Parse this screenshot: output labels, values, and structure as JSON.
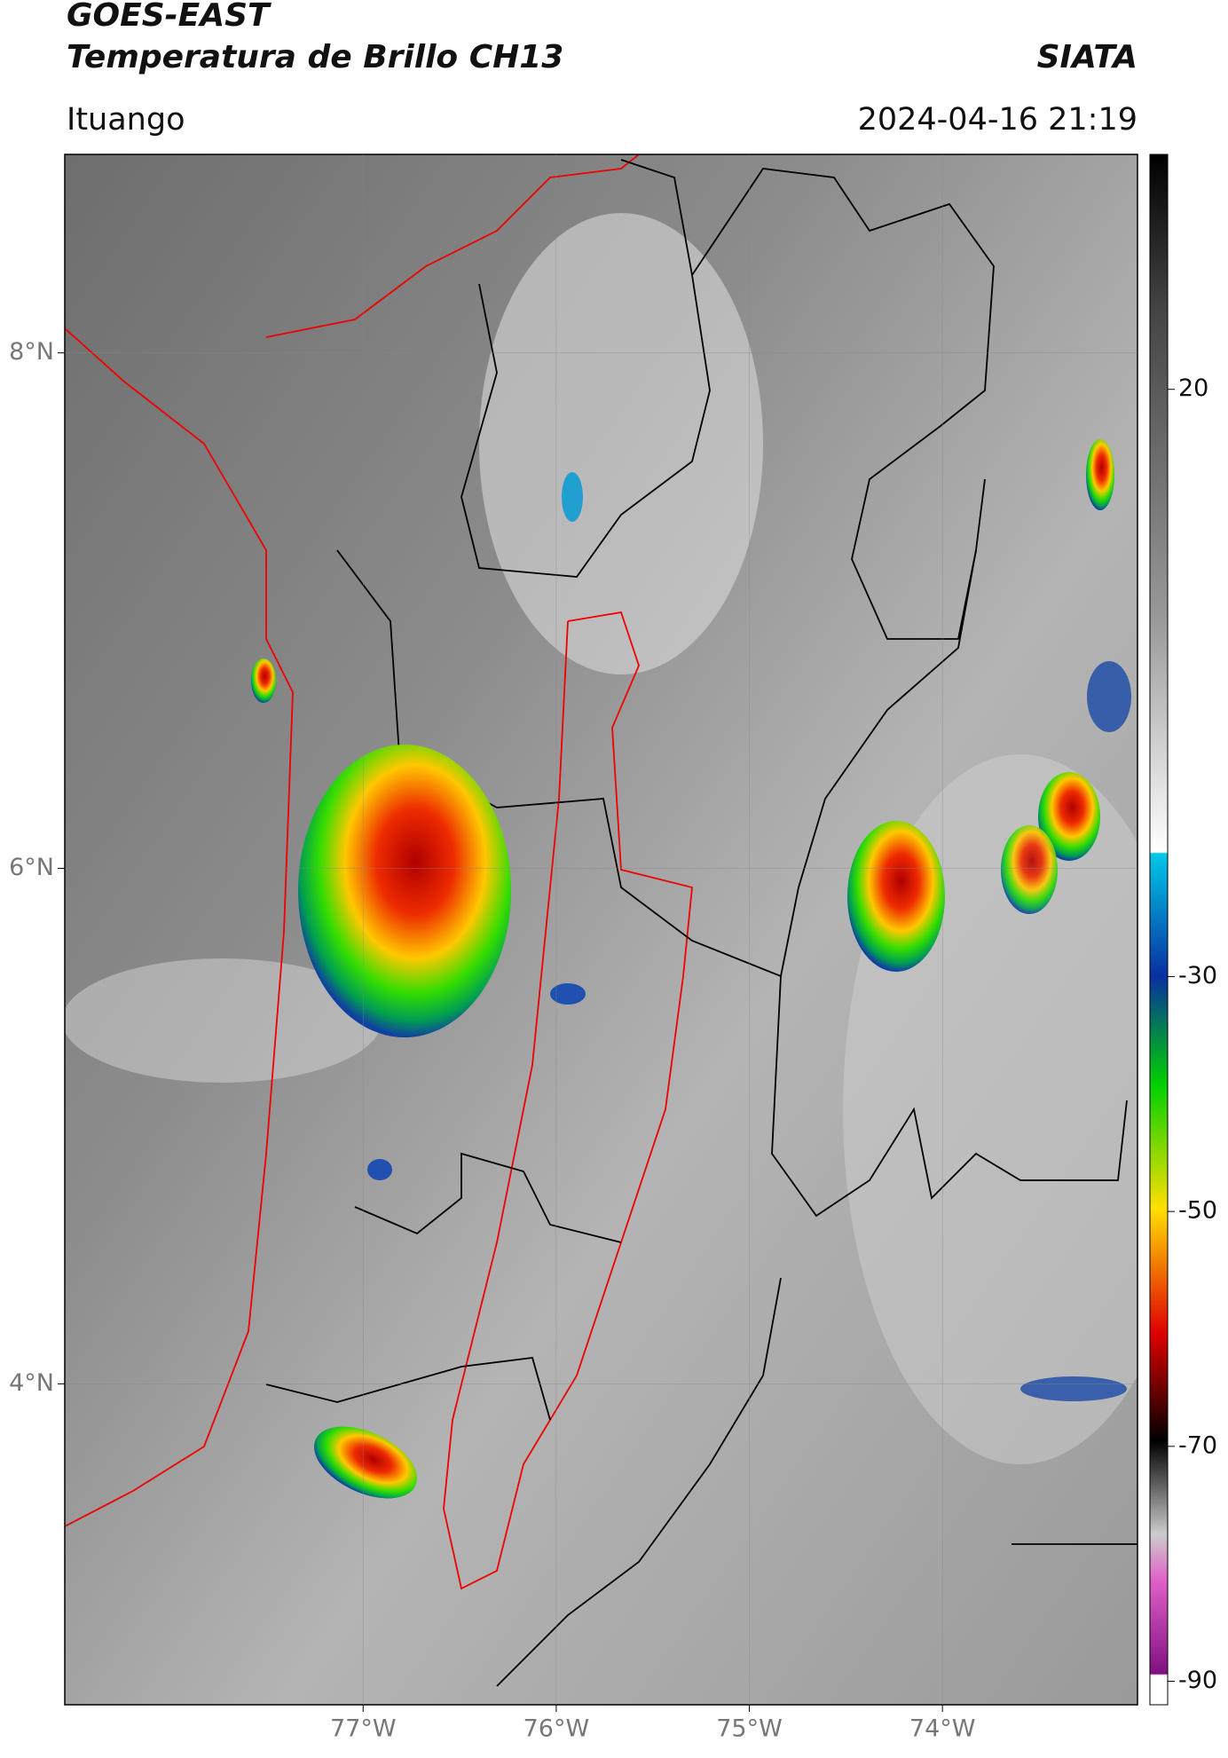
{
  "header": {
    "title": "GOES-EAST",
    "subtitle": "Temperatura de Brillo CH13",
    "brand": "SIATA",
    "location": "Ituango",
    "datetime": "2024-04-16 21:19"
  },
  "map": {
    "xlim": [
      -78.545,
      -72.99
    ],
    "ylim": [
      2.755,
      8.77
    ],
    "xticks": [
      {
        "value": -77,
        "label": "77°W"
      },
      {
        "value": -76,
        "label": "76°W"
      },
      {
        "value": -75,
        "label": "75°W"
      },
      {
        "value": -74,
        "label": "74°W"
      }
    ],
    "yticks": [
      {
        "value": 8,
        "label": "8°N"
      },
      {
        "value": 6,
        "label": "6°N"
      },
      {
        "value": 4,
        "label": "4°N"
      }
    ],
    "grid": true
  },
  "colorbar": {
    "range": [
      40,
      -92
    ],
    "ticks": [
      20,
      -30,
      -50,
      -70,
      -90
    ]
  }
}
